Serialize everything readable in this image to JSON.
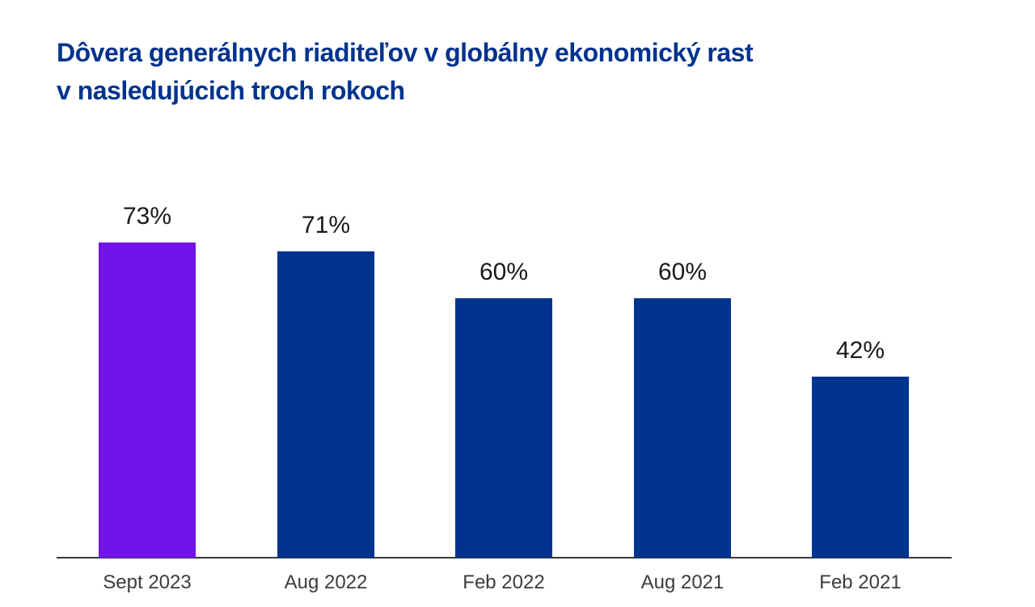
{
  "title": {
    "line1": "Dôvera generálnych riaditeľov v globálny ekonomický rast",
    "line2": "v nasledujúcich troch rokoch"
  },
  "colors": {
    "title": "#00338D",
    "bar": "#00338D",
    "bar_highlight": "#7213EA",
    "value_label": "#1A1A1A",
    "category_label": "#3C3C3C",
    "axis_line": "#3A3A3A",
    "background": "#FFFFFF"
  },
  "chart_data": {
    "type": "bar",
    "title": "Dôvera generálnych riaditeľov v globálny ekonomický rast v nasledujúcich troch rokoch",
    "categories": [
      "Sept 2023",
      "Aug 2022",
      "Feb 2022",
      "Aug 2021",
      "Feb 2021"
    ],
    "values": [
      73,
      71,
      60,
      60,
      42
    ],
    "value_labels": [
      "73%",
      "71%",
      "60%",
      "60%",
      "42%"
    ],
    "unit": "%",
    "ylim": [
      0,
      100
    ],
    "grid": false,
    "legend": false,
    "highlight_index": 0,
    "highlight_category": "Sept 2023",
    "xlabel": "",
    "ylabel": ""
  }
}
